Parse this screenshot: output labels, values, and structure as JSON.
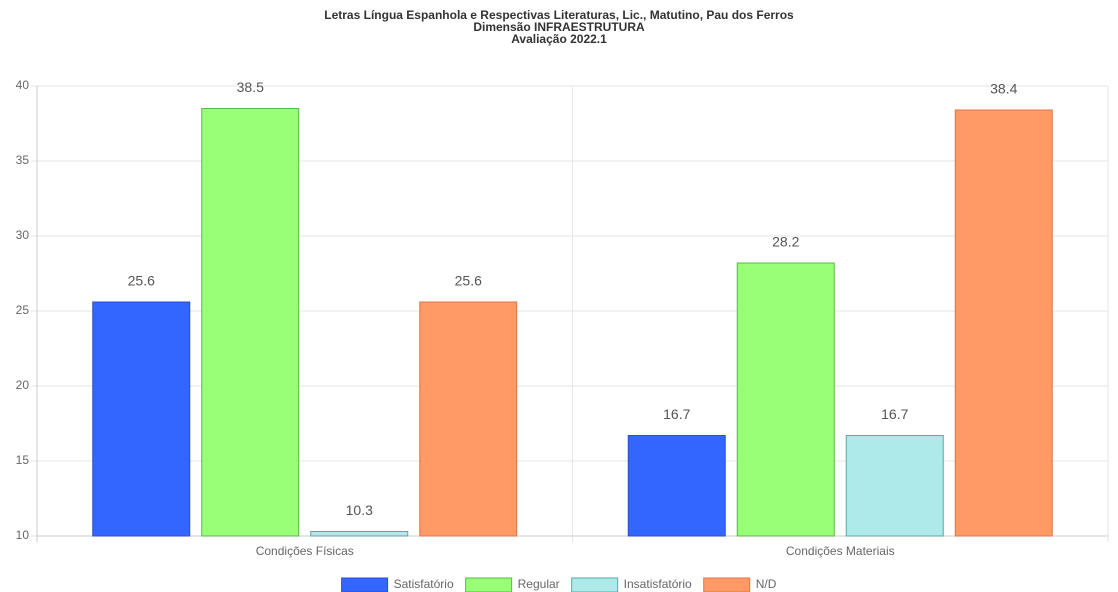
{
  "chart_data": {
    "type": "bar",
    "title": [
      "Letras Língua Espanhola e Respectivas Literaturas, Lic., Matutino, Pau dos Ferros",
      "Dimensão INFRAESTRUTURA",
      "Avaliação 2022.1"
    ],
    "categories": [
      "Condições Físicas",
      "Condições Materiais"
    ],
    "series": [
      {
        "name": "Satisfatório",
        "color": "#3366ff",
        "border": "#2a4fcc",
        "values": [
          25.6,
          16.7
        ]
      },
      {
        "name": "Regular",
        "color": "#99ff77",
        "border": "#55bb44",
        "values": [
          38.5,
          28.2
        ]
      },
      {
        "name": "Insatisfatório",
        "color": "#aeeaea",
        "border": "#55aaaa",
        "values": [
          10.3,
          16.7
        ]
      },
      {
        "name": "N/D",
        "color": "#ff9966",
        "border": "#dd7744",
        "values": [
          25.6,
          38.4
        ]
      }
    ],
    "ylim": [
      10,
      40
    ],
    "yticks": [
      10,
      15,
      20,
      25,
      30,
      35,
      40
    ],
    "grid": true,
    "legend": "bottom"
  }
}
